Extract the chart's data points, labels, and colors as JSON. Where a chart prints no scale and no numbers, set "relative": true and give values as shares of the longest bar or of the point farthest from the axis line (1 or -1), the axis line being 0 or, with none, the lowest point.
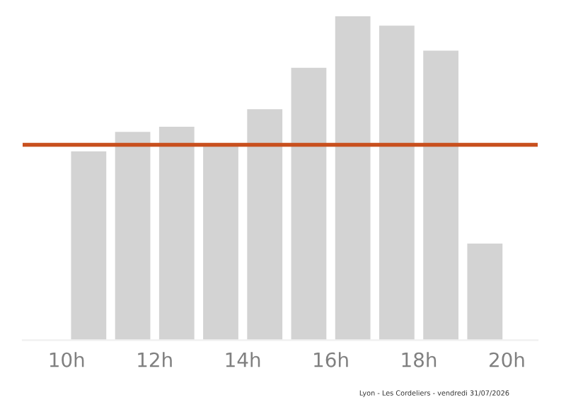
{
  "chart_data": {
    "type": "bar",
    "relative": true,
    "x": [
      10.5,
      11.5,
      12.5,
      13.5,
      14.5,
      15.5,
      16.5,
      17.5,
      18.5,
      19.5
    ],
    "values": [
      0.583,
      0.643,
      0.659,
      0.607,
      0.713,
      0.841,
      1,
      0.971,
      0.894,
      0.298
    ],
    "color": "#d3d3d3",
    "xlim": [
      9,
      20.7
    ],
    "xticks": [
      {
        "value": 10,
        "label": "10h"
      },
      {
        "value": 12,
        "label": "12h"
      },
      {
        "value": 14,
        "label": "14h"
      },
      {
        "value": 16,
        "label": "16h"
      },
      {
        "value": 18,
        "label": "18h"
      },
      {
        "value": 20,
        "label": "20h"
      }
    ],
    "ref_lines": [
      {
        "axis": "y",
        "value": 0.603,
        "color": "#c8501e"
      }
    ],
    "grid": false,
    "legend": false,
    "annotations": [
      "Lyon - Les Cordeliers - vendredi 31/07/2026"
    ]
  }
}
